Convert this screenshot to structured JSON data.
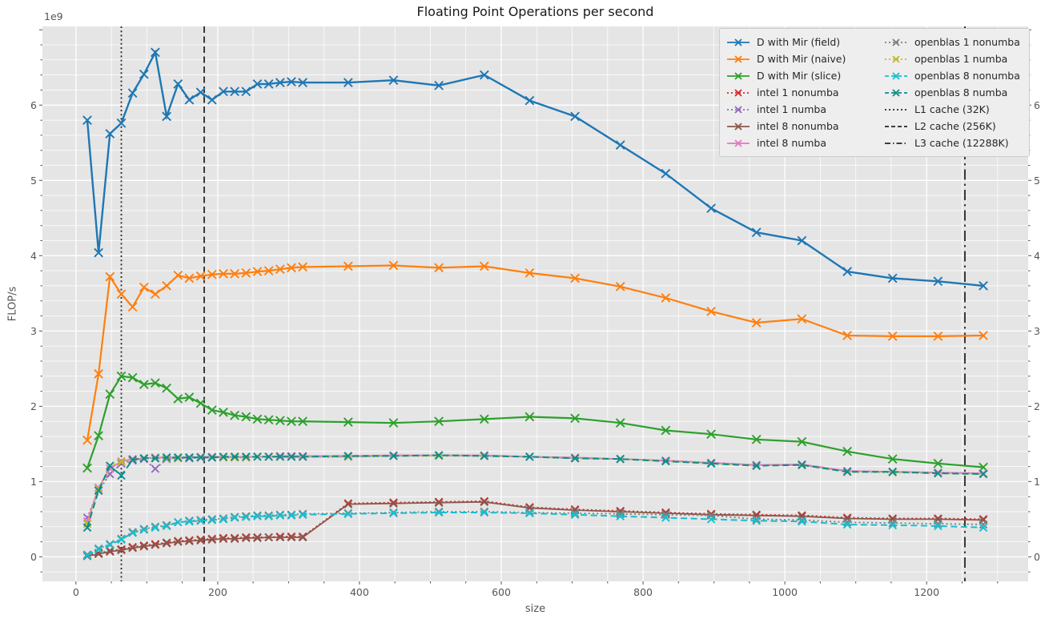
{
  "chart_data": {
    "type": "line",
    "title": "Floating Point Operations per second",
    "xlabel": "size",
    "ylabel": "FLOP/s",
    "y_offset_label": "1e9",
    "xlim": [
      -47.2,
      1343.2
    ],
    "ylim": [
      -0.325,
      7.045
    ],
    "x_major_ticks": [
      0,
      200,
      400,
      600,
      800,
      1000,
      1200
    ],
    "x_minor_step": 50,
    "y_major_ticks": [
      0,
      1,
      2,
      3,
      4,
      5,
      6
    ],
    "y_minor_step": 0.2,
    "grid": true,
    "plot_bg": "#e5e5e5",
    "grid_color": "#ffffff",
    "tick_color": "#555555",
    "legend_position": "upper right, 2 columns",
    "x": [
      16,
      32,
      48,
      64,
      80,
      96,
      112,
      128,
      144,
      160,
      176,
      192,
      208,
      224,
      240,
      256,
      272,
      288,
      304,
      320,
      384,
      448,
      512,
      576,
      640,
      704,
      768,
      832,
      896,
      960,
      1024,
      1088,
      1152,
      1216,
      1280
    ],
    "series": [
      {
        "name": "D with Mir (field)",
        "color": "#1f77b4",
        "dash": "solid",
        "width": 2.4,
        "values": [
          5.8,
          4.04,
          5.62,
          5.76,
          6.16,
          6.41,
          6.7,
          5.85,
          6.28,
          6.07,
          6.17,
          6.07,
          6.18,
          6.18,
          6.18,
          6.28,
          6.28,
          6.3,
          6.31,
          6.3,
          6.3,
          6.33,
          6.26,
          6.4,
          6.06,
          5.85,
          5.47,
          5.09,
          4.63,
          4.31,
          4.2,
          3.79,
          3.7,
          3.66,
          3.6
        ]
      },
      {
        "name": "D with Mir (naive)",
        "color": "#ff7f0e",
        "dash": "solid",
        "width": 2.2,
        "values": [
          1.55,
          2.43,
          3.72,
          3.49,
          3.32,
          3.58,
          3.49,
          3.6,
          3.74,
          3.7,
          3.73,
          3.75,
          3.76,
          3.76,
          3.77,
          3.79,
          3.8,
          3.82,
          3.84,
          3.85,
          3.86,
          3.87,
          3.84,
          3.86,
          3.77,
          3.7,
          3.59,
          3.44,
          3.26,
          3.11,
          3.16,
          2.94,
          2.93,
          2.93,
          2.94
        ]
      },
      {
        "name": "D with Mir (slice)",
        "color": "#2ca02c",
        "dash": "solid",
        "width": 2.2,
        "values": [
          1.18,
          1.61,
          2.16,
          2.4,
          2.38,
          2.29,
          2.31,
          2.24,
          2.1,
          2.12,
          2.04,
          1.95,
          1.92,
          1.88,
          1.86,
          1.83,
          1.82,
          1.81,
          1.8,
          1.8,
          1.79,
          1.78,
          1.8,
          1.83,
          1.86,
          1.84,
          1.78,
          1.68,
          1.63,
          1.56,
          1.53,
          1.4,
          1.3,
          1.24,
          1.19
        ]
      },
      {
        "name": "intel 1 nonumba",
        "color": "#d62728",
        "dash": "dotted",
        "width": 2.0,
        "values": [
          0.02,
          0.05,
          0.08,
          0.1,
          0.13,
          0.15,
          0.17,
          0.19,
          0.21,
          0.22,
          0.23,
          0.24,
          0.25,
          0.25,
          0.26,
          0.26,
          0.26,
          0.27,
          0.27,
          0.27,
          0.71,
          0.72,
          0.73,
          0.74,
          0.66,
          0.63,
          0.61,
          0.59,
          0.57,
          0.56,
          0.55,
          0.52,
          0.51,
          0.51,
          0.5
        ]
      },
      {
        "name": "intel 1 numba",
        "color": "#9467bd",
        "dash": "dotted",
        "width": 2.0,
        "values": [
          0.52,
          0.88,
          1.1,
          1.24,
          1.28,
          1.3,
          1.17,
          1.3,
          1.31,
          1.31,
          1.32,
          1.32,
          1.32,
          1.32,
          1.32,
          1.33,
          1.33,
          1.33,
          1.33,
          1.33,
          1.33,
          1.34,
          1.35,
          1.34,
          1.33,
          1.31,
          1.3,
          1.28,
          1.25,
          1.22,
          1.22,
          1.14,
          1.13,
          1.12,
          1.11
        ]
      },
      {
        "name": "intel 8 nonumba",
        "color": "#8c564b",
        "dash": "solid",
        "width": 1.8,
        "values": [
          0.01,
          0.04,
          0.07,
          0.09,
          0.12,
          0.14,
          0.16,
          0.18,
          0.2,
          0.21,
          0.22,
          0.23,
          0.24,
          0.24,
          0.25,
          0.25,
          0.26,
          0.26,
          0.26,
          0.26,
          0.7,
          0.71,
          0.72,
          0.73,
          0.65,
          0.62,
          0.6,
          0.58,
          0.56,
          0.55,
          0.54,
          0.51,
          0.5,
          0.5,
          0.49
        ]
      },
      {
        "name": "intel 8 numba",
        "color": "#e377c2",
        "dash": "solid",
        "width": 1.8,
        "values": [
          0.47,
          0.92,
          1.17,
          1.27,
          1.3,
          1.31,
          1.32,
          1.32,
          1.32,
          1.32,
          1.33,
          1.33,
          1.33,
          1.33,
          1.33,
          1.33,
          1.33,
          1.34,
          1.34,
          1.34,
          1.34,
          1.35,
          1.35,
          1.35,
          1.33,
          1.32,
          1.3,
          1.28,
          1.25,
          1.22,
          1.23,
          1.14,
          1.13,
          1.12,
          1.11
        ]
      },
      {
        "name": "openblas 1 nonumba",
        "color": "#7f7f7f",
        "dash": "dotted",
        "width": 1.8,
        "values": [
          0.03,
          0.11,
          0.17,
          0.24,
          0.33,
          0.37,
          0.4,
          0.42,
          0.46,
          0.48,
          0.49,
          0.5,
          0.51,
          0.53,
          0.54,
          0.55,
          0.55,
          0.56,
          0.56,
          0.57,
          0.58,
          0.59,
          0.6,
          0.6,
          0.59,
          0.58,
          0.57,
          0.56,
          0.55,
          0.5,
          0.49,
          0.46,
          0.45,
          0.44,
          0.43
        ]
      },
      {
        "name": "openblas 1 numba",
        "color": "#bcbd22",
        "dash": "dotted",
        "width": 2.0,
        "values": [
          0.44,
          0.9,
          1.21,
          1.26,
          1.29,
          1.31,
          1.31,
          1.31,
          1.31,
          1.32,
          1.32,
          1.32,
          1.32,
          1.32,
          1.32,
          1.33,
          1.33,
          1.33,
          1.33,
          1.33,
          1.33,
          1.34,
          1.34,
          1.34,
          1.33,
          1.31,
          1.3,
          1.27,
          1.24,
          1.21,
          1.22,
          1.13,
          1.12,
          1.11,
          1.1
        ]
      },
      {
        "name": "openblas 8 nonumba",
        "color": "#17becf",
        "dash": "dashed",
        "width": 2.0,
        "values": [
          0.02,
          0.1,
          0.16,
          0.23,
          0.32,
          0.36,
          0.39,
          0.41,
          0.46,
          0.47,
          0.48,
          0.49,
          0.5,
          0.52,
          0.53,
          0.54,
          0.54,
          0.55,
          0.55,
          0.56,
          0.57,
          0.58,
          0.59,
          0.59,
          0.58,
          0.56,
          0.54,
          0.52,
          0.5,
          0.48,
          0.47,
          0.43,
          0.42,
          0.41,
          0.39
        ]
      },
      {
        "name": "openblas 8 numba",
        "color": "#0d8d8d",
        "dash": "dashed",
        "width": 2.0,
        "values": [
          0.39,
          0.88,
          1.21,
          1.08,
          1.29,
          1.31,
          1.31,
          1.32,
          1.32,
          1.32,
          1.32,
          1.32,
          1.33,
          1.33,
          1.33,
          1.33,
          1.33,
          1.33,
          1.33,
          1.33,
          1.34,
          1.34,
          1.35,
          1.34,
          1.33,
          1.31,
          1.3,
          1.27,
          1.24,
          1.21,
          1.22,
          1.13,
          1.13,
          1.11,
          1.1
        ]
      }
    ],
    "vlines": [
      {
        "label": "L1 cache (32K)",
        "x": 64,
        "dash": "dotted",
        "color": "#262626"
      },
      {
        "label": "L2 cache (256K)",
        "x": 181,
        "dash": "dashed",
        "color": "#262626"
      },
      {
        "label": "L3 cache (12288K)",
        "x": 1254,
        "dash": "dashdot",
        "color": "#262626"
      }
    ]
  }
}
